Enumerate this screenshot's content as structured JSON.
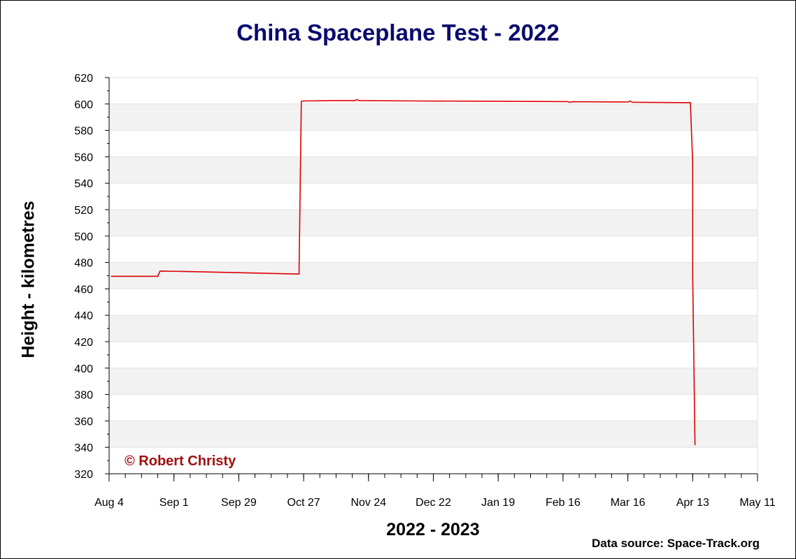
{
  "chart_data": {
    "type": "line",
    "title": "China Spaceplane Test - 2022",
    "xlabel": "2022 - 2023",
    "ylabel": "Height - kilometres",
    "ylim": [
      320,
      620
    ],
    "yticks": [
      320,
      340,
      360,
      380,
      400,
      420,
      440,
      460,
      480,
      500,
      520,
      540,
      560,
      580,
      600,
      620
    ],
    "xlim": [
      "2022-08-04",
      "2023-05-11"
    ],
    "xtick_labels": [
      "Aug 4",
      "Sep 1",
      "Sep 29",
      "Oct 27",
      "Nov 24",
      "Dec 22",
      "Jan 19",
      "Feb 16",
      "Mar 16",
      "Apr 13",
      "May 11"
    ],
    "xtick_dates": [
      "2022-08-04",
      "2022-09-01",
      "2022-09-29",
      "2022-10-27",
      "2022-11-24",
      "2022-12-22",
      "2023-01-19",
      "2023-02-16",
      "2023-03-16",
      "2023-04-13",
      "2023-05-11"
    ],
    "minor_tick_interval_days": 7,
    "grid": "alternating horizontal bands",
    "series": [
      {
        "color": "#dd0000",
        "x": [
          "2022-08-05",
          "2022-08-25",
          "2022-08-26",
          "2022-09-10",
          "2022-10-05",
          "2022-10-25",
          "2022-10-26",
          "2022-10-27",
          "2022-11-10",
          "2022-11-18",
          "2022-11-19",
          "2022-11-20",
          "2022-12-15",
          "2023-01-10",
          "2023-02-18",
          "2023-02-19",
          "2023-02-20",
          "2023-03-16",
          "2023-03-17",
          "2023-03-18",
          "2023-04-12",
          "2023-04-13",
          "2023-04-13",
          "2023-04-14"
        ],
        "y": [
          469.5,
          469.5,
          473.5,
          473,
          472,
          471.2,
          602,
          602.3,
          602.6,
          602.5,
          603.3,
          602.6,
          602.3,
          602.1,
          601.8,
          601.2,
          601.7,
          601.5,
          602.2,
          601.3,
          601,
          555,
          470,
          342
        ]
      }
    ]
  },
  "annotations": {
    "copyright": "© Robert Christy",
    "data_source": "Data source: Space-Track.org"
  },
  "colors": {
    "title": "#0a0a6e",
    "band": "#f2f2f2",
    "copyright": "#a01010",
    "line": "#dd0000"
  }
}
